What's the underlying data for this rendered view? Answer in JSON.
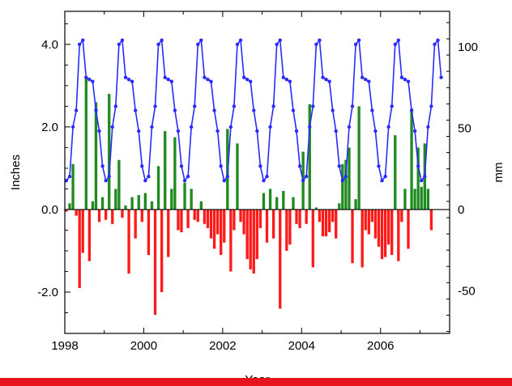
{
  "chart_data": {
    "type": "bar+line",
    "title": "",
    "xlabel": "Year",
    "ylabel_left": "Inches",
    "ylabel_right": "mm",
    "x_range": [
      1998,
      2007.75
    ],
    "ylim_left": [
      -3.0,
      4.8
    ],
    "ylim_right_ticks": [
      100,
      50,
      0,
      -50
    ],
    "x_ticks": [
      1998,
      2000,
      2002,
      2004,
      2006
    ],
    "y_ticks_left": [
      "4.0",
      "2.0",
      "0.0",
      "-2.0"
    ],
    "grid": false,
    "legend": "none",
    "bar_x_start": 1998.04,
    "bar_step_years": 0.0833,
    "bar_values": [
      -0.05,
      0.15,
      1.1,
      -0.15,
      -1.9,
      -1.05,
      3.2,
      -1.25,
      0.2,
      2.6,
      -0.3,
      0.3,
      -0.25,
      2.8,
      -0.35,
      0.5,
      1.2,
      -0.2,
      0.1,
      -1.55,
      0.3,
      -0.7,
      0.35,
      -0.3,
      0.4,
      -1.1,
      0.2,
      -2.55,
      1.05,
      -2.0,
      1.9,
      -1.15,
      0.5,
      1.75,
      -0.5,
      -0.55,
      0.65,
      -0.45,
      0.5,
      -0.25,
      -0.3,
      0.2,
      -0.35,
      -0.45,
      -0.7,
      -0.95,
      -0.6,
      -1.1,
      -0.8,
      1.95,
      -1.5,
      -0.5,
      1.6,
      -0.3,
      -0.6,
      -1.2,
      -1.45,
      -1.55,
      -1.2,
      -0.45,
      0.4,
      -0.8,
      0.5,
      -0.7,
      0.3,
      -2.4,
      0.45,
      -1.0,
      -0.85,
      0.3,
      -0.35,
      -0.45,
      1.4,
      -0.35,
      2.55,
      -1.4,
      0.05,
      -0.3,
      -0.65,
      -0.65,
      -0.55,
      -0.3,
      -0.7,
      0.15,
      1.1,
      1.2,
      1.5,
      -1.3,
      0.25,
      2.5,
      -1.4,
      -0.5,
      -0.6,
      -0.3,
      -0.7,
      -0.9,
      -1.2,
      -1.15,
      -0.85,
      -1.1,
      1.8,
      -1.25,
      -0.3,
      0.5,
      -0.95,
      2.45,
      0.5,
      1.5,
      0.55,
      1.6,
      0.5,
      -0.5
    ],
    "bar_colors": {
      "positive": "#1f8a1f",
      "negative": "#ff1a1a"
    },
    "series": [
      {
        "x_start": 1998.04,
        "step_years": 0.0833,
        "color": "#2a2aff",
        "values": [
          0.7,
          0.8,
          2.0,
          2.4,
          4.0,
          4.1,
          3.2,
          3.15,
          3.1,
          2.4,
          1.9,
          1.05,
          0.7,
          0.8,
          2.0,
          2.5,
          4.0,
          4.1,
          3.2,
          3.15,
          3.1,
          2.4,
          1.9,
          1.05,
          0.7,
          0.8,
          2.0,
          2.5,
          4.0,
          4.1,
          3.2,
          3.15,
          3.1,
          2.4,
          1.9,
          1.05,
          0.7,
          0.8,
          2.0,
          2.5,
          4.0,
          4.1,
          3.2,
          3.15,
          3.1,
          2.4,
          1.9,
          1.05,
          0.7,
          0.8,
          2.0,
          2.5,
          4.0,
          4.1,
          3.2,
          3.15,
          3.1,
          2.4,
          1.9,
          1.05,
          0.7,
          0.8,
          2.0,
          2.5,
          4.0,
          4.1,
          3.2,
          3.15,
          3.1,
          2.4,
          1.9,
          1.05,
          0.7,
          0.8,
          2.0,
          2.5,
          4.0,
          4.1,
          3.2,
          3.15,
          3.1,
          2.4,
          1.9,
          1.05,
          0.7,
          0.8,
          2.0,
          2.5,
          4.0,
          4.1,
          3.2,
          3.15,
          3.1,
          2.4,
          1.9,
          1.05,
          0.7,
          0.8,
          2.0,
          2.5,
          4.0,
          4.1,
          3.2,
          3.15,
          3.1,
          2.4,
          1.9,
          1.05,
          0.7,
          0.8,
          2.0,
          2.5,
          4.0,
          4.1,
          3.2
        ]
      }
    ]
  },
  "footer_bar_color": "#e8141b"
}
